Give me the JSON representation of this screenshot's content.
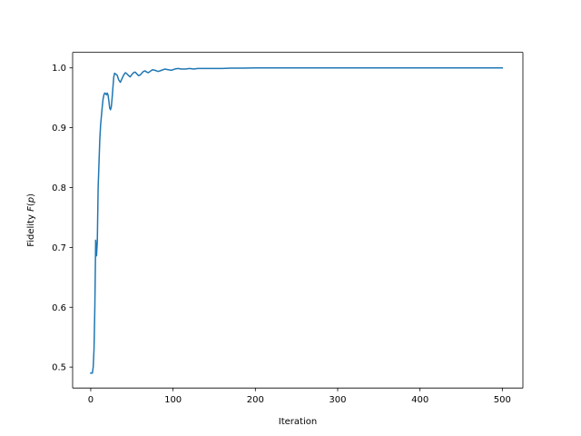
{
  "chart_data": {
    "type": "line",
    "title": "",
    "xlabel": "Iteration",
    "ylabel": {
      "prefix": "Fidelity",
      "func": "F",
      "open": "(",
      "arg": "p",
      "close": ")"
    },
    "xlim": [
      -22,
      525
    ],
    "ylim": [
      0.465,
      1.026
    ],
    "xticks": [
      0,
      100,
      200,
      300,
      400,
      500
    ],
    "xtick_labels": [
      "0",
      "100",
      "200",
      "300",
      "400",
      "500"
    ],
    "yticks": [
      0.5,
      0.6,
      0.7,
      0.8,
      0.9,
      1.0
    ],
    "ytick_labels": [
      "0.5",
      "0.6",
      "0.7",
      "0.8",
      "0.9",
      "1.0"
    ],
    "grid": false,
    "legend": "none",
    "series": [
      {
        "color": "#1f77b4",
        "points": [
          [
            0,
            0.49
          ],
          [
            1,
            0.49
          ],
          [
            2,
            0.49
          ],
          [
            3,
            0.5
          ],
          [
            4,
            0.53
          ],
          [
            5,
            0.6
          ],
          [
            6,
            0.712
          ],
          [
            7,
            0.686
          ],
          [
            8,
            0.71
          ],
          [
            9,
            0.8
          ],
          [
            10,
            0.84
          ],
          [
            11,
            0.88
          ],
          [
            12,
            0.905
          ],
          [
            13,
            0.92
          ],
          [
            14,
            0.935
          ],
          [
            15,
            0.948
          ],
          [
            16,
            0.955
          ],
          [
            17,
            0.958
          ],
          [
            18,
            0.957
          ],
          [
            19,
            0.955
          ],
          [
            20,
            0.958
          ],
          [
            21,
            0.955
          ],
          [
            22,
            0.945
          ],
          [
            23,
            0.933
          ],
          [
            24,
            0.93
          ],
          [
            25,
            0.935
          ],
          [
            26,
            0.95
          ],
          [
            27,
            0.968
          ],
          [
            28,
            0.985
          ],
          [
            29,
            0.991
          ],
          [
            30,
            0.99
          ],
          [
            32,
            0.988
          ],
          [
            34,
            0.98
          ],
          [
            36,
            0.976
          ],
          [
            38,
            0.982
          ],
          [
            40,
            0.988
          ],
          [
            42,
            0.992
          ],
          [
            44,
            0.99
          ],
          [
            46,
            0.987
          ],
          [
            48,
            0.985
          ],
          [
            50,
            0.989
          ],
          [
            52,
            0.992
          ],
          [
            54,
            0.993
          ],
          [
            56,
            0.99
          ],
          [
            58,
            0.987
          ],
          [
            60,
            0.988
          ],
          [
            62,
            0.991
          ],
          [
            64,
            0.994
          ],
          [
            66,
            0.995
          ],
          [
            68,
            0.993
          ],
          [
            70,
            0.992
          ],
          [
            72,
            0.994
          ],
          [
            75,
            0.997
          ],
          [
            78,
            0.996
          ],
          [
            82,
            0.994
          ],
          [
            86,
            0.996
          ],
          [
            90,
            0.998
          ],
          [
            94,
            0.997
          ],
          [
            98,
            0.996
          ],
          [
            102,
            0.998
          ],
          [
            106,
            0.999
          ],
          [
            110,
            0.998
          ],
          [
            115,
            0.998
          ],
          [
            120,
            0.999
          ],
          [
            125,
            0.998
          ],
          [
            130,
            0.999
          ],
          [
            140,
            0.999
          ],
          [
            150,
            0.999
          ],
          [
            160,
            0.999
          ],
          [
            170,
            0.9995
          ],
          [
            185,
            0.9995
          ],
          [
            200,
            1.0
          ],
          [
            250,
            1.0
          ],
          [
            300,
            1.0
          ],
          [
            350,
            1.0
          ],
          [
            400,
            1.0
          ],
          [
            450,
            1.0
          ],
          [
            500,
            1.0
          ]
        ]
      }
    ]
  }
}
